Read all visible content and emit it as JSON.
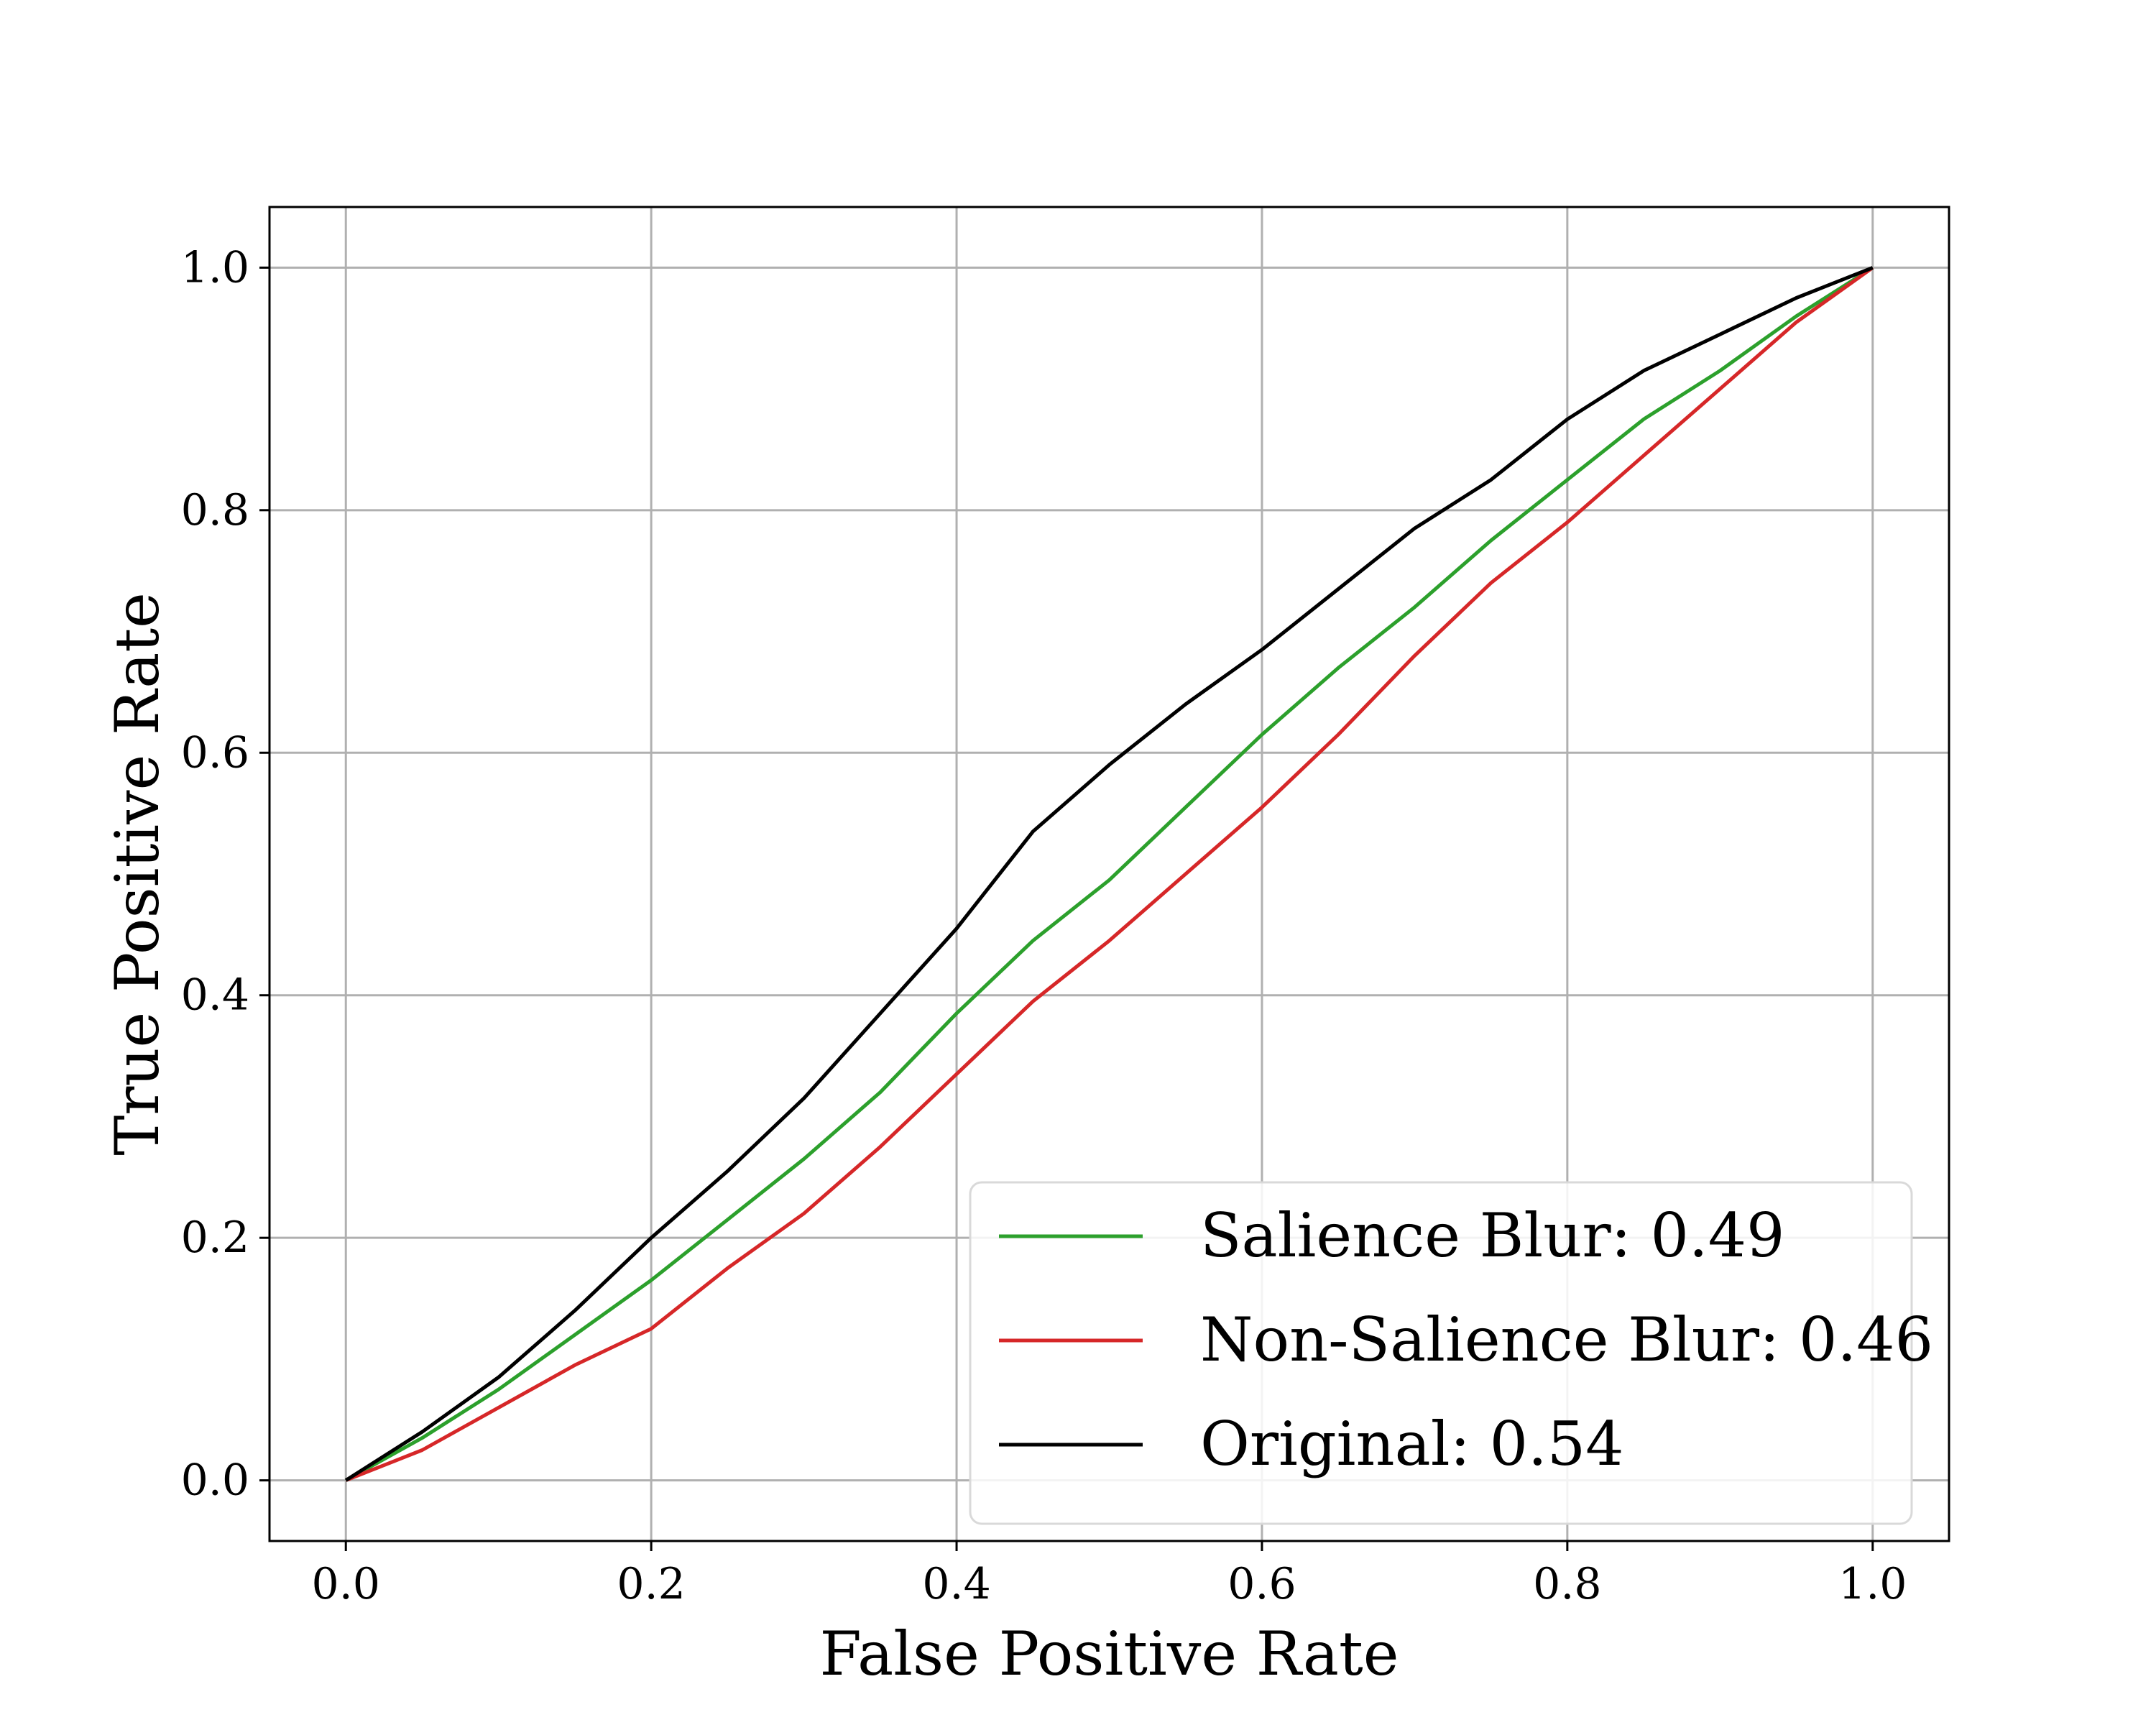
{
  "chart_data": {
    "type": "line",
    "title": "",
    "xlabel": "False Positive Rate",
    "ylabel": "True Positive Rate",
    "xlim": [
      -0.05,
      1.05
    ],
    "ylim": [
      -0.05,
      1.05
    ],
    "xticks": [
      0.0,
      0.2,
      0.4,
      0.6,
      0.8,
      1.0
    ],
    "xtick_labels": [
      "0.0",
      "0.2",
      "0.4",
      "0.6",
      "0.8",
      "1.0"
    ],
    "yticks": [
      0.0,
      0.2,
      0.4,
      0.6,
      0.8,
      1.0
    ],
    "ytick_labels": [
      "0.0",
      "0.2",
      "0.4",
      "0.6",
      "0.8",
      "1.0"
    ],
    "grid": true,
    "legend_position": "lower-right",
    "series": [
      {
        "name": "Salience Blur: 0.49",
        "color": "#2ca02c",
        "x": [
          0.0,
          0.05,
          0.1,
          0.15,
          0.2,
          0.25,
          0.3,
          0.35,
          0.4,
          0.45,
          0.5,
          0.55,
          0.6,
          0.65,
          0.7,
          0.75,
          0.8,
          0.85,
          0.9,
          0.95,
          1.0
        ],
        "y": [
          0.0,
          0.035,
          0.075,
          0.12,
          0.165,
          0.215,
          0.265,
          0.32,
          0.385,
          0.445,
          0.495,
          0.555,
          0.615,
          0.67,
          0.72,
          0.775,
          0.825,
          0.875,
          0.915,
          0.96,
          1.0
        ]
      },
      {
        "name": "Non-Salience Blur: 0.46",
        "color": "#d62728",
        "x": [
          0.0,
          0.05,
          0.1,
          0.15,
          0.2,
          0.25,
          0.3,
          0.35,
          0.4,
          0.45,
          0.5,
          0.55,
          0.6,
          0.65,
          0.7,
          0.75,
          0.8,
          0.85,
          0.9,
          0.95,
          1.0
        ],
        "y": [
          0.0,
          0.025,
          0.06,
          0.095,
          0.125,
          0.175,
          0.22,
          0.275,
          0.335,
          0.395,
          0.445,
          0.5,
          0.555,
          0.615,
          0.68,
          0.74,
          0.79,
          0.845,
          0.9,
          0.955,
          1.0
        ]
      },
      {
        "name": "Original: 0.54",
        "color": "#000000",
        "x": [
          0.0,
          0.05,
          0.1,
          0.15,
          0.2,
          0.25,
          0.3,
          0.35,
          0.4,
          0.45,
          0.5,
          0.55,
          0.6,
          0.65,
          0.7,
          0.75,
          0.8,
          0.85,
          0.9,
          0.95,
          1.0
        ],
        "y": [
          0.0,
          0.04,
          0.085,
          0.14,
          0.2,
          0.255,
          0.315,
          0.385,
          0.455,
          0.535,
          0.59,
          0.64,
          0.685,
          0.735,
          0.785,
          0.825,
          0.875,
          0.915,
          0.945,
          0.975,
          1.0
        ]
      }
    ]
  }
}
